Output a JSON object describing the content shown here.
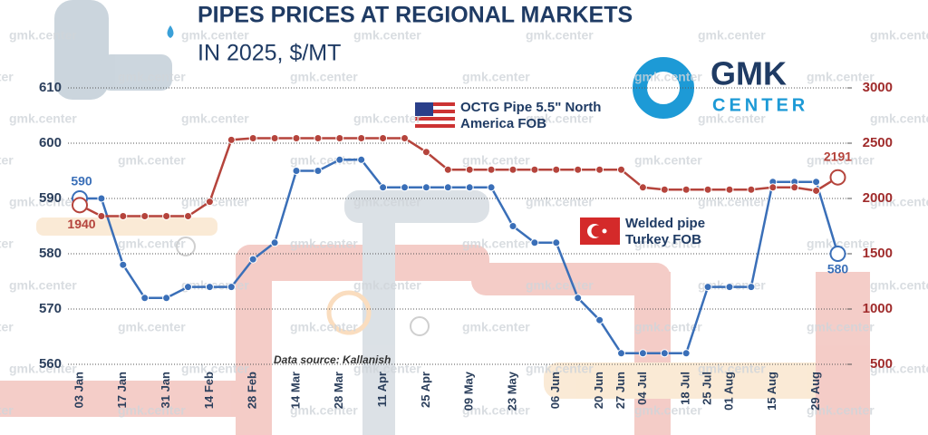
{
  "chart_data": {
    "type": "line",
    "title": "PIPES PRICES AT REGIONAL MARKETS",
    "subtitle": "IN 2025, $/MT",
    "source": "Data source: Kallanish",
    "logo": {
      "top": "GMK",
      "bottom": "CENTER"
    },
    "watermark": "gmk.center",
    "categories": [
      "03 Jan",
      null,
      "17 Jan",
      null,
      "31 Jan",
      null,
      "14 Feb",
      null,
      "28 Feb",
      null,
      "14 Mar",
      null,
      "28 Mar",
      null,
      "11 Apr",
      null,
      "25 Apr",
      null,
      "09 May",
      null,
      "23 May",
      null,
      "06 Jun",
      null,
      "20 Jun",
      "27 Jun",
      "04 Jul",
      null,
      "18 Jul",
      "25 Jul",
      "01 Aug",
      null,
      "15 Aug",
      null,
      "29 Aug",
      null
    ],
    "series": [
      {
        "name": "Welded pipe Turkey FOB",
        "color": "#3a6fb8",
        "axis": "y",
        "values": [
          590,
          590,
          578,
          572,
          572,
          574,
          574,
          574,
          579,
          582,
          595,
          595,
          597,
          597,
          592,
          592,
          592,
          592,
          592,
          592,
          585,
          582,
          582,
          572,
          568,
          562,
          562,
          562,
          562,
          574,
          574,
          574,
          593,
          593,
          593,
          580
        ]
      },
      {
        "name": "OCTG Pipe 5.5\" North America FOB",
        "color": "#b5443c",
        "axis": "y2",
        "values": [
          1940,
          1840,
          1840,
          1840,
          1840,
          1840,
          1970,
          2530,
          2545,
          2545,
          2545,
          2545,
          2545,
          2545,
          2545,
          2545,
          2420,
          2260,
          2260,
          2260,
          2260,
          2260,
          2260,
          2260,
          2260,
          2260,
          2100,
          2080,
          2080,
          2080,
          2080,
          2080,
          2100,
          2100,
          2070,
          2191
        ]
      }
    ],
    "ylim": [
      560,
      610
    ],
    "yticks": [
      560,
      570,
      580,
      590,
      600,
      610
    ],
    "y2lim": [
      500,
      3000
    ],
    "y2ticks": [
      500,
      1000,
      1500,
      2000,
      2500,
      3000
    ],
    "grid": true
  }
}
